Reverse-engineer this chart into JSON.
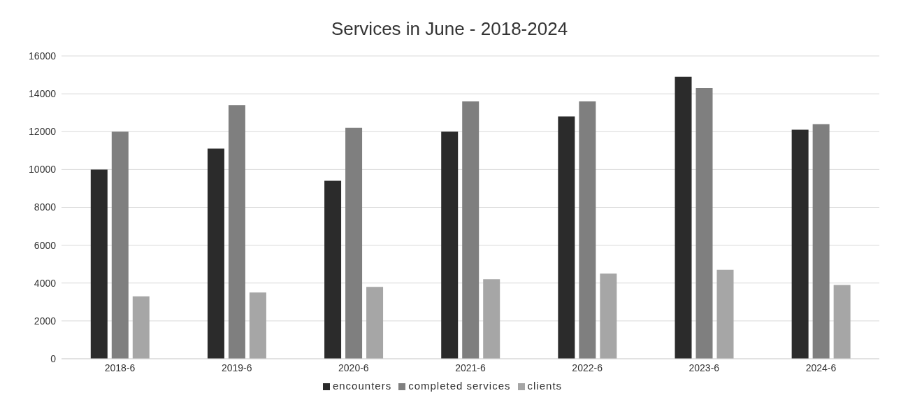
{
  "chart_data": {
    "type": "bar",
    "title": "Services in June - 2018-2024",
    "categories": [
      "2018-6",
      "2019-6",
      "2020-6",
      "2021-6",
      "2022-6",
      "2023-6",
      "2024-6"
    ],
    "series": [
      {
        "name": "encounters",
        "color": "#2b2b2b",
        "values": [
          10000,
          11100,
          9400,
          12000,
          12800,
          14900,
          12100
        ]
      },
      {
        "name": "completed services",
        "color": "#7f7f7f",
        "values": [
          12000,
          13400,
          12200,
          13600,
          13600,
          14300,
          12400
        ]
      },
      {
        "name": "clients",
        "color": "#a6a6a6",
        "values": [
          3300,
          3500,
          3800,
          4200,
          4500,
          4700,
          3900
        ]
      }
    ],
    "ylim": [
      0,
      16000
    ],
    "yticks": [
      0,
      2000,
      4000,
      6000,
      8000,
      10000,
      12000,
      14000,
      16000
    ],
    "grid": "y",
    "legend": "bottom"
  }
}
